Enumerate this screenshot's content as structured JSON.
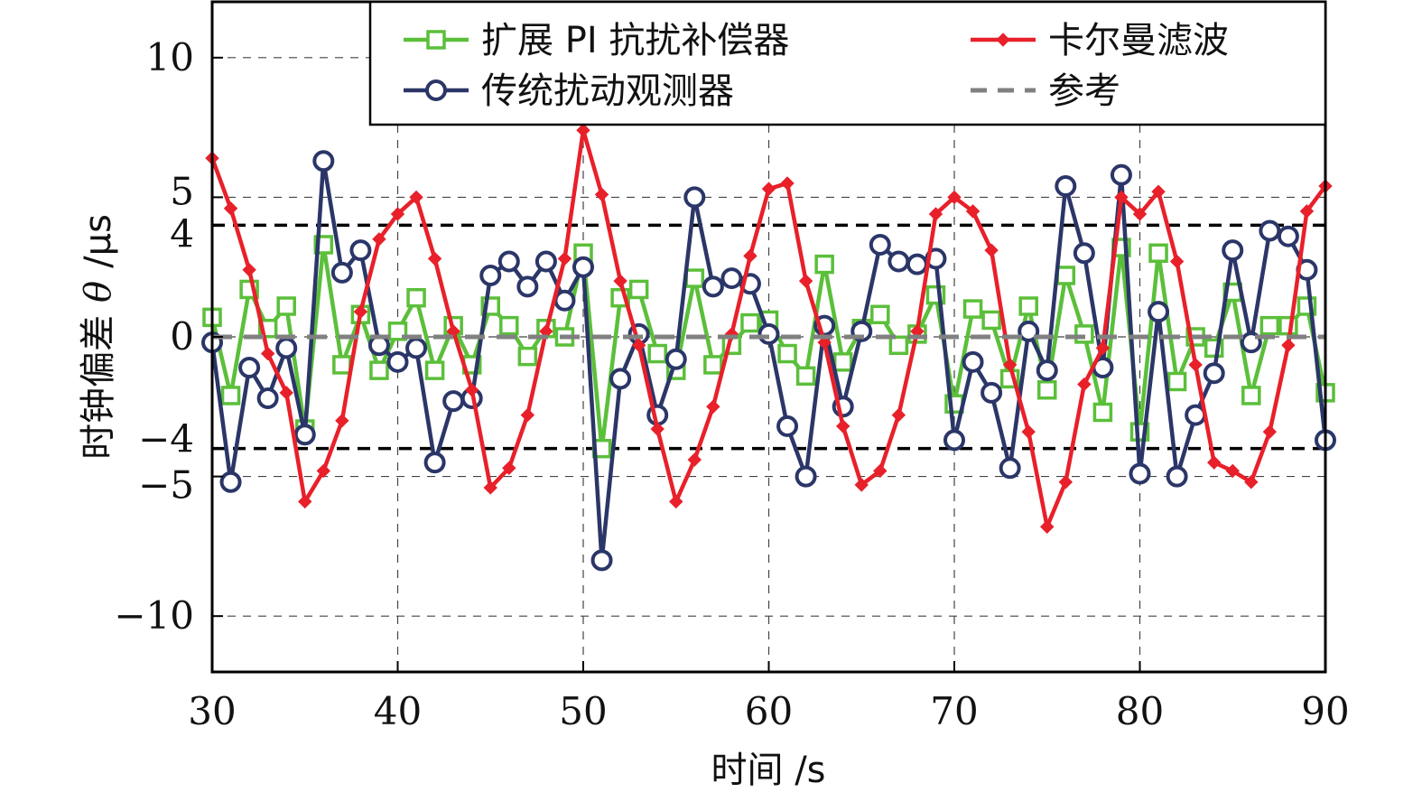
{
  "chart_data": {
    "type": "line",
    "xlabel": "时间 /s",
    "ylabel_cn": "时钟偏差",
    "ylabel_sym": "θ",
    "ylabel_unit": "/μs",
    "xlim": [
      30,
      90
    ],
    "ylim": [
      -12,
      12
    ],
    "x_ticks": [
      30,
      40,
      50,
      60,
      70,
      80,
      90
    ],
    "x_tick_labels": [
      "30",
      "40",
      "50",
      "60",
      "70",
      "80",
      "90"
    ],
    "y_ticks": [
      10,
      5,
      4,
      0,
      -4,
      -5,
      -10
    ],
    "y_tick_labels": [
      "10",
      "5",
      "4",
      "0",
      "−4",
      "−5",
      "−10"
    ],
    "grid": true,
    "legend_position": "top",
    "reference_lines": [
      {
        "y": 4,
        "style": "dashed",
        "color": "#000000"
      },
      {
        "y": -4,
        "style": "dashed",
        "color": "#000000"
      }
    ],
    "series": [
      {
        "name": "扩展 PI 抗扰补偿器",
        "color": "#5bbf3a",
        "marker": "square",
        "x": [
          30,
          31,
          32,
          33,
          34,
          35,
          36,
          37,
          38,
          39,
          40,
          41,
          42,
          43,
          44,
          45,
          46,
          47,
          48,
          49,
          50,
          51,
          52,
          53,
          54,
          55,
          56,
          57,
          58,
          59,
          60,
          61,
          62,
          63,
          64,
          65,
          66,
          67,
          68,
          69,
          70,
          71,
          72,
          73,
          74,
          75,
          76,
          77,
          78,
          79,
          80,
          81,
          82,
          83,
          84,
          85,
          86,
          87,
          88,
          89,
          90
        ],
        "y": [
          0.7,
          -2.1,
          1.7,
          0.3,
          1.1,
          -3.3,
          3.3,
          -1.0,
          0.8,
          -1.2,
          0.2,
          1.4,
          -1.2,
          0.4,
          -1.0,
          1.1,
          0.4,
          -0.7,
          0.3,
          0.0,
          3.0,
          -4.0,
          1.4,
          1.7,
          -0.6,
          -1.2,
          2.1,
          -1.0,
          -0.3,
          0.5,
          0.6,
          -0.6,
          -1.4,
          2.6,
          -0.9,
          0.3,
          0.8,
          -0.3,
          0.1,
          1.5,
          -2.4,
          1.0,
          0.6,
          -1.5,
          1.1,
          -1.9,
          2.2,
          0.1,
          -2.7,
          3.2,
          -3.4,
          3.0,
          -1.6,
          0.0,
          -0.4,
          1.6,
          -2.1,
          0.4,
          0.4,
          1.1,
          -2.0
        ]
      },
      {
        "name": "传统扰动观测器",
        "color": "#2b3668",
        "marker": "circle",
        "x": [
          30,
          31,
          32,
          33,
          34,
          35,
          36,
          37,
          38,
          39,
          40,
          41,
          42,
          43,
          44,
          45,
          46,
          47,
          48,
          49,
          50,
          51,
          52,
          53,
          54,
          55,
          56,
          57,
          58,
          59,
          60,
          61,
          62,
          63,
          64,
          65,
          66,
          67,
          68,
          69,
          70,
          71,
          72,
          73,
          74,
          75,
          76,
          77,
          78,
          79,
          80,
          81,
          82,
          83,
          84,
          85,
          86,
          87,
          88,
          89,
          90
        ],
        "y": [
          -0.2,
          -5.2,
          -1.1,
          -2.2,
          -0.4,
          -3.5,
          6.3,
          2.3,
          3.1,
          -0.3,
          -0.9,
          -0.4,
          -4.5,
          -2.3,
          -2.2,
          2.2,
          2.7,
          1.8,
          2.7,
          1.3,
          2.5,
          -8.0,
          -1.5,
          0.1,
          -2.8,
          -0.8,
          5.0,
          1.8,
          2.1,
          1.9,
          0.1,
          -3.2,
          -5.0,
          0.4,
          -2.5,
          0.2,
          3.3,
          2.7,
          2.6,
          2.8,
          -3.7,
          -0.9,
          -2.0,
          -4.7,
          0.2,
          -1.2,
          5.4,
          3.0,
          -1.1,
          5.8,
          -4.9,
          0.9,
          -5.0,
          -2.8,
          -1.3,
          3.1,
          -0.2,
          3.8,
          3.6,
          2.4,
          -3.7
        ]
      },
      {
        "name": "卡尔曼滤波",
        "color": "#e8202a",
        "marker": "diamond",
        "x": [
          30,
          31,
          32,
          33,
          34,
          35,
          36,
          37,
          38,
          39,
          40,
          41,
          42,
          43,
          44,
          45,
          46,
          47,
          48,
          49,
          50,
          51,
          52,
          53,
          54,
          55,
          56,
          57,
          58,
          59,
          60,
          61,
          62,
          63,
          64,
          65,
          66,
          67,
          68,
          69,
          70,
          71,
          72,
          73,
          74,
          75,
          76,
          77,
          78,
          79,
          80,
          81,
          82,
          83,
          84,
          85,
          86,
          87,
          88,
          89,
          90
        ],
        "y": [
          6.4,
          4.6,
          2.4,
          -0.6,
          -2.0,
          -5.9,
          -4.8,
          -3.0,
          0.9,
          3.5,
          4.4,
          5.0,
          2.8,
          0.2,
          -1.9,
          -5.4,
          -4.7,
          -2.8,
          0.2,
          2.8,
          7.4,
          5.1,
          2.0,
          -0.3,
          -3.3,
          -5.9,
          -4.4,
          -2.5,
          0.1,
          2.9,
          5.3,
          5.5,
          2.0,
          -0.2,
          -3.2,
          -5.3,
          -4.8,
          -2.8,
          0.2,
          4.4,
          5.0,
          4.5,
          3.1,
          -1.0,
          -3.4,
          -6.8,
          -5.2,
          -1.7,
          -0.4,
          5.0,
          4.4,
          5.2,
          2.7,
          -1.0,
          -4.5,
          -4.8,
          -5.2,
          -3.4,
          -0.3,
          4.5,
          5.4
        ]
      },
      {
        "name": "参考",
        "color": "#808080",
        "marker": "none",
        "style": "dashed",
        "x": [
          30,
          90
        ],
        "y": [
          0,
          0
        ]
      }
    ]
  }
}
